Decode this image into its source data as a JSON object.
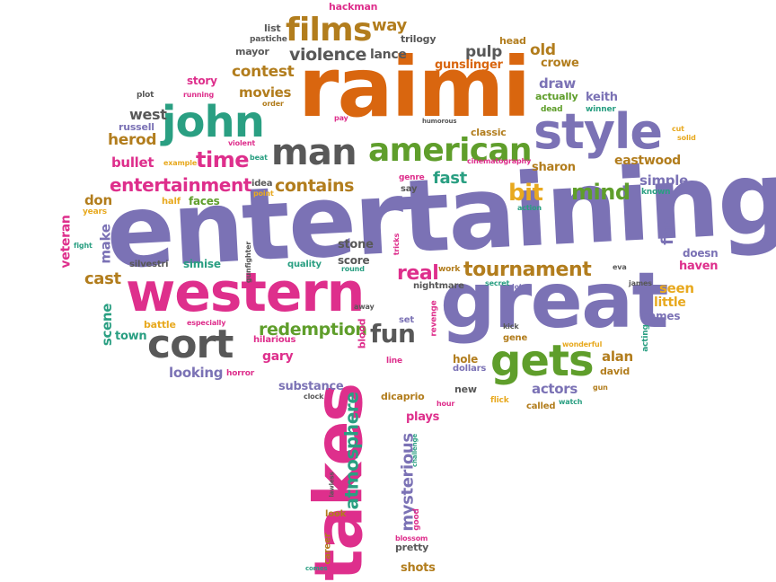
{
  "colors": {
    "orange": "#d9660f",
    "purple": "#7b72b5",
    "pink": "#de2f8c",
    "green": "#5f9e2b",
    "teal": "#2a9f82",
    "gray": "#585858",
    "brown": "#b27d1d",
    "gold": "#e8a91f"
  },
  "words": [
    {
      "text": "entertaining",
      "color": "purple"
    },
    {
      "text": "raimi",
      "color": "orange"
    },
    {
      "text": "great",
      "color": "purple"
    },
    {
      "text": "western",
      "color": "pink"
    },
    {
      "text": "takes",
      "color": "pink"
    },
    {
      "text": "john",
      "color": "teal"
    },
    {
      "text": "style",
      "color": "purple"
    },
    {
      "text": "american",
      "color": "green"
    },
    {
      "text": "man",
      "color": "gray"
    },
    {
      "text": "gets",
      "color": "green"
    },
    {
      "text": "cort",
      "color": "gray"
    },
    {
      "text": "films",
      "color": "brown"
    },
    {
      "text": "tournament",
      "color": "brown"
    },
    {
      "text": "fun",
      "color": "gray"
    },
    {
      "text": "mind",
      "color": "green"
    },
    {
      "text": "bit",
      "color": "gold"
    },
    {
      "text": "time",
      "color": "pink"
    },
    {
      "text": "entertainment",
      "color": "pink"
    },
    {
      "text": "contains",
      "color": "brown"
    },
    {
      "text": "redemption",
      "color": "green"
    },
    {
      "text": "real",
      "color": "pink"
    },
    {
      "text": "violence",
      "color": "gray"
    },
    {
      "text": "fast",
      "color": "teal"
    },
    {
      "text": "atmosphere",
      "color": "teal"
    },
    {
      "text": "mysterious",
      "color": "purple"
    },
    {
      "text": "hackman",
      "color": "pink"
    },
    {
      "text": "way",
      "color": "brown"
    },
    {
      "text": "list",
      "color": "gray"
    },
    {
      "text": "trilogy",
      "color": "gray"
    },
    {
      "text": "head",
      "color": "brown"
    },
    {
      "text": "pastiche",
      "color": "gray"
    },
    {
      "text": "mayor",
      "color": "gray"
    },
    {
      "text": "lance",
      "color": "gray"
    },
    {
      "text": "pulp",
      "color": "gray"
    },
    {
      "text": "old",
      "color": "brown"
    },
    {
      "text": "crowe",
      "color": "brown"
    },
    {
      "text": "contest",
      "color": "brown"
    },
    {
      "text": "gunslinger",
      "color": "orange"
    },
    {
      "text": "story",
      "color": "pink"
    },
    {
      "text": "movies",
      "color": "brown"
    },
    {
      "text": "draw",
      "color": "purple"
    },
    {
      "text": "actually",
      "color": "green"
    },
    {
      "text": "keith",
      "color": "purple"
    },
    {
      "text": "plot",
      "color": "gray"
    },
    {
      "text": "running",
      "color": "pink"
    },
    {
      "text": "order",
      "color": "brown"
    },
    {
      "text": "dead",
      "color": "green"
    },
    {
      "text": "winner",
      "color": "teal"
    },
    {
      "text": "west",
      "color": "gray"
    },
    {
      "text": "pay",
      "color": "pink"
    },
    {
      "text": "humorous",
      "color": "gray"
    },
    {
      "text": "classic",
      "color": "brown"
    },
    {
      "text": "russell",
      "color": "purple"
    },
    {
      "text": "herod",
      "color": "brown"
    },
    {
      "text": "violent",
      "color": "pink"
    },
    {
      "text": "cut",
      "color": "gold"
    },
    {
      "text": "solid",
      "color": "gold"
    },
    {
      "text": "beat",
      "color": "teal"
    },
    {
      "text": "cinematography",
      "color": "pink"
    },
    {
      "text": "sharon",
      "color": "brown"
    },
    {
      "text": "eastwood",
      "color": "brown"
    },
    {
      "text": "bullet",
      "color": "pink"
    },
    {
      "text": "example",
      "color": "gold"
    },
    {
      "text": "idea",
      "color": "gray"
    },
    {
      "text": "genre",
      "color": "pink"
    },
    {
      "text": "known",
      "color": "teal"
    },
    {
      "text": "simple",
      "color": "purple"
    },
    {
      "text": "say",
      "color": "gray"
    },
    {
      "text": "don",
      "color": "brown"
    },
    {
      "text": "point",
      "color": "gold"
    },
    {
      "text": "half",
      "color": "gold"
    },
    {
      "text": "faces",
      "color": "green"
    },
    {
      "text": "action",
      "color": "teal"
    },
    {
      "text": "years",
      "color": "gold"
    },
    {
      "text": "veteran",
      "color": "pink"
    },
    {
      "text": "make",
      "color": "purple"
    },
    {
      "text": "fight",
      "color": "teal"
    },
    {
      "text": "fan",
      "color": "purple"
    },
    {
      "text": "doesn",
      "color": "purple"
    },
    {
      "text": "haven",
      "color": "pink"
    },
    {
      "text": "gunfighter",
      "color": "gray"
    },
    {
      "text": "stone",
      "color": "gray"
    },
    {
      "text": "tricks",
      "color": "pink"
    },
    {
      "text": "silvestri",
      "color": "gray"
    },
    {
      "text": "simise",
      "color": "teal"
    },
    {
      "text": "quality",
      "color": "teal"
    },
    {
      "text": "score",
      "color": "gray"
    },
    {
      "text": "round",
      "color": "teal"
    },
    {
      "text": "work",
      "color": "brown"
    },
    {
      "text": "eva",
      "color": "gray"
    },
    {
      "text": "cast",
      "color": "brown"
    },
    {
      "text": "nightmare",
      "color": "gray"
    },
    {
      "text": "secret",
      "color": "teal"
    },
    {
      "text": "lot",
      "color": "purple"
    },
    {
      "text": "james",
      "color": "gray"
    },
    {
      "text": "seen",
      "color": "gold"
    },
    {
      "text": "little",
      "color": "gold"
    },
    {
      "text": "names",
      "color": "purple"
    },
    {
      "text": "scene",
      "color": "teal"
    },
    {
      "text": "town",
      "color": "teal"
    },
    {
      "text": "battle",
      "color": "gold"
    },
    {
      "text": "especially",
      "color": "pink"
    },
    {
      "text": "away",
      "color": "gray"
    },
    {
      "text": "blood",
      "color": "pink"
    },
    {
      "text": "set",
      "color": "purple"
    },
    {
      "text": "revenge",
      "color": "pink"
    },
    {
      "text": "kick",
      "color": "gray"
    },
    {
      "text": "gene",
      "color": "brown"
    },
    {
      "text": "acting",
      "color": "teal"
    },
    {
      "text": "hilarious",
      "color": "pink"
    },
    {
      "text": "gary",
      "color": "pink"
    },
    {
      "text": "alan",
      "color": "brown"
    },
    {
      "text": "wonderful",
      "color": "gold"
    },
    {
      "text": "looking",
      "color": "purple"
    },
    {
      "text": "horror",
      "color": "pink"
    },
    {
      "text": "line",
      "color": "pink"
    },
    {
      "text": "hole",
      "color": "brown"
    },
    {
      "text": "dollars",
      "color": "purple"
    },
    {
      "text": "david",
      "color": "brown"
    },
    {
      "text": "substance",
      "color": "purple"
    },
    {
      "text": "clock",
      "color": "gray"
    },
    {
      "text": "dicaprio",
      "color": "brown"
    },
    {
      "text": "new",
      "color": "gray"
    },
    {
      "text": "actors",
      "color": "purple"
    },
    {
      "text": "gun",
      "color": "brown"
    },
    {
      "text": "hour",
      "color": "pink"
    },
    {
      "text": "flick",
      "color": "gold"
    },
    {
      "text": "called",
      "color": "brown"
    },
    {
      "text": "watch",
      "color": "teal"
    },
    {
      "text": "plays",
      "color": "pink"
    },
    {
      "text": "challenge",
      "color": "teal"
    },
    {
      "text": "lawless",
      "color": "gray"
    },
    {
      "text": "good",
      "color": "pink"
    },
    {
      "text": "look",
      "color": "brown"
    },
    {
      "text": "blossom",
      "color": "pink"
    },
    {
      "text": "career",
      "color": "brown"
    },
    {
      "text": "pretty",
      "color": "gray"
    },
    {
      "text": "comes",
      "color": "teal"
    },
    {
      "text": "shots",
      "color": "brown"
    }
  ]
}
